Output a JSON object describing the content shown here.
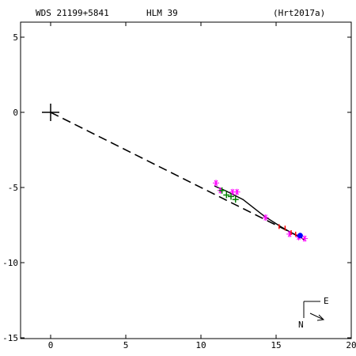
{
  "header": {
    "wds": "WDS 21199+5841",
    "discoverer": "HLM  39",
    "reference": "(Hrt2017a)"
  },
  "compass": {
    "east_label": "E",
    "north_label": "N"
  },
  "colors": {
    "background": "#ffffff",
    "axis": "#000000",
    "magenta": "#ff00ff",
    "green": "#008000",
    "red": "#ff0000",
    "blue": "#0000ff"
  },
  "chart_data": {
    "type": "scatter",
    "xlim": [
      -3,
      20
    ],
    "ylim": [
      -16,
      7
    ],
    "x_ticks": [
      0,
      5,
      10,
      15,
      20
    ],
    "x_tick_labels": [
      "0",
      "5",
      "10",
      "15",
      "20"
    ],
    "y_ticks": [
      5,
      0,
      -5,
      -10,
      -15
    ],
    "y_tick_labels": [
      "5",
      "0",
      "-5",
      "-10",
      "-15"
    ],
    "grid": false,
    "primary": {
      "x": 0,
      "y": 0
    },
    "orbit_path": [
      [
        10.9,
        -4.9
      ],
      [
        11.6,
        -5.2
      ],
      [
        12.8,
        -5.8
      ],
      [
        14.2,
        -6.9
      ],
      [
        15.3,
        -7.6
      ],
      [
        16.0,
        -8.0
      ],
      [
        16.6,
        -8.3
      ],
      [
        16.9,
        -8.5
      ]
    ],
    "dashed_line": [
      [
        0,
        0
      ],
      [
        16.8,
        -8.4
      ]
    ],
    "observations": {
      "magenta_asterisks": [
        [
          11.0,
          -4.7
        ],
        [
          11.3,
          -5.2
        ],
        [
          12.1,
          -5.3
        ],
        [
          12.4,
          -5.3
        ],
        [
          14.3,
          -7.0
        ],
        [
          15.9,
          -8.1
        ],
        [
          16.5,
          -8.3
        ],
        [
          16.9,
          -8.4
        ]
      ],
      "green_plus": [
        [
          11.4,
          -5.2
        ],
        [
          11.7,
          -5.5
        ],
        [
          12.0,
          -5.6
        ],
        [
          12.3,
          -5.8
        ]
      ],
      "red_marks": [
        [
          15.2,
          -7.6
        ],
        [
          15.6,
          -7.7
        ],
        [
          16.0,
          -8.0
        ],
        [
          16.3,
          -8.1
        ]
      ],
      "blue_dots": [
        [
          16.6,
          -8.2
        ]
      ]
    }
  }
}
